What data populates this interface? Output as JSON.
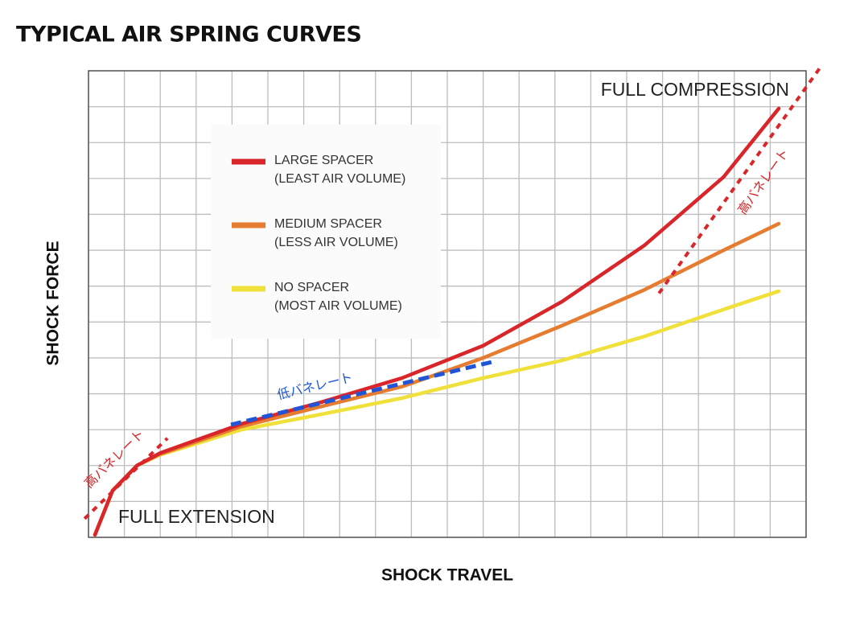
{
  "chart_data": {
    "type": "line",
    "title": "TYPICAL AIR SPRING CURVES",
    "x_label": "SHOCK TRAVEL",
    "y_label": "SHOCK FORCE",
    "x": [
      0.18,
      0.67,
      1.35,
      2.0,
      4.26,
      6.5,
      8.74,
      11.0,
      13.2,
      15.5,
      17.7,
      19.24
    ],
    "series": [
      {
        "name": "LARGE SPACER",
        "description": "(LEAST AIR VOLUME)",
        "color": "#d9262b",
        "values": [
          0.07,
          1.3,
          2.0,
          2.35,
          3.16,
          3.77,
          4.44,
          5.34,
          6.57,
          8.14,
          10.04,
          11.95
        ]
      },
      {
        "name": "MEDIUM SPACER",
        "description": "(LESS AIR VOLUME)",
        "color": "#e57c30",
        "values": [
          0.07,
          1.3,
          2.0,
          2.32,
          3.09,
          3.65,
          4.2,
          5.0,
          5.9,
          6.9,
          8.0,
          8.74
        ]
      },
      {
        "name": "NO SPACER",
        "description": "(MOST AIR VOLUME)",
        "color": "#efe03a",
        "values": [
          0.07,
          1.3,
          2.0,
          2.3,
          3.0,
          3.43,
          3.88,
          4.44,
          4.93,
          5.6,
          6.35,
          6.86
        ]
      }
    ],
    "xlim": [
      0,
      20
    ],
    "ylim": [
      0,
      13
    ],
    "xticks": [
      0,
      1,
      2,
      3,
      4,
      5,
      6,
      7,
      8,
      9,
      10,
      11,
      12,
      13,
      14,
      15,
      16,
      17,
      18,
      19,
      20
    ],
    "yticks": [
      0,
      1,
      2,
      3,
      4,
      5,
      6,
      7,
      8,
      9,
      10,
      11,
      12,
      13
    ],
    "grid": true,
    "tick_labels": false,
    "corner_labels": {
      "top_right": "FULL COMPRESSION",
      "bottom_left": "FULL EXTENSION"
    },
    "annotations": [
      {
        "label": "高バネレート",
        "color": "#d9262b",
        "style": "dotted",
        "x": [
          -0.11,
          2.2
        ],
        "y": [
          0.52,
          2.76
        ]
      },
      {
        "label": "低バネレート",
        "color": "#1f55d6",
        "style": "dashed",
        "x": [
          3.97,
          11.26
        ],
        "y": [
          3.14,
          4.89
        ]
      },
      {
        "label": "高バネレート",
        "color": "#d9262b",
        "style": "dotted",
        "x": [
          15.9,
          20.4
        ],
        "y": [
          6.8,
          13.1
        ]
      }
    ]
  }
}
